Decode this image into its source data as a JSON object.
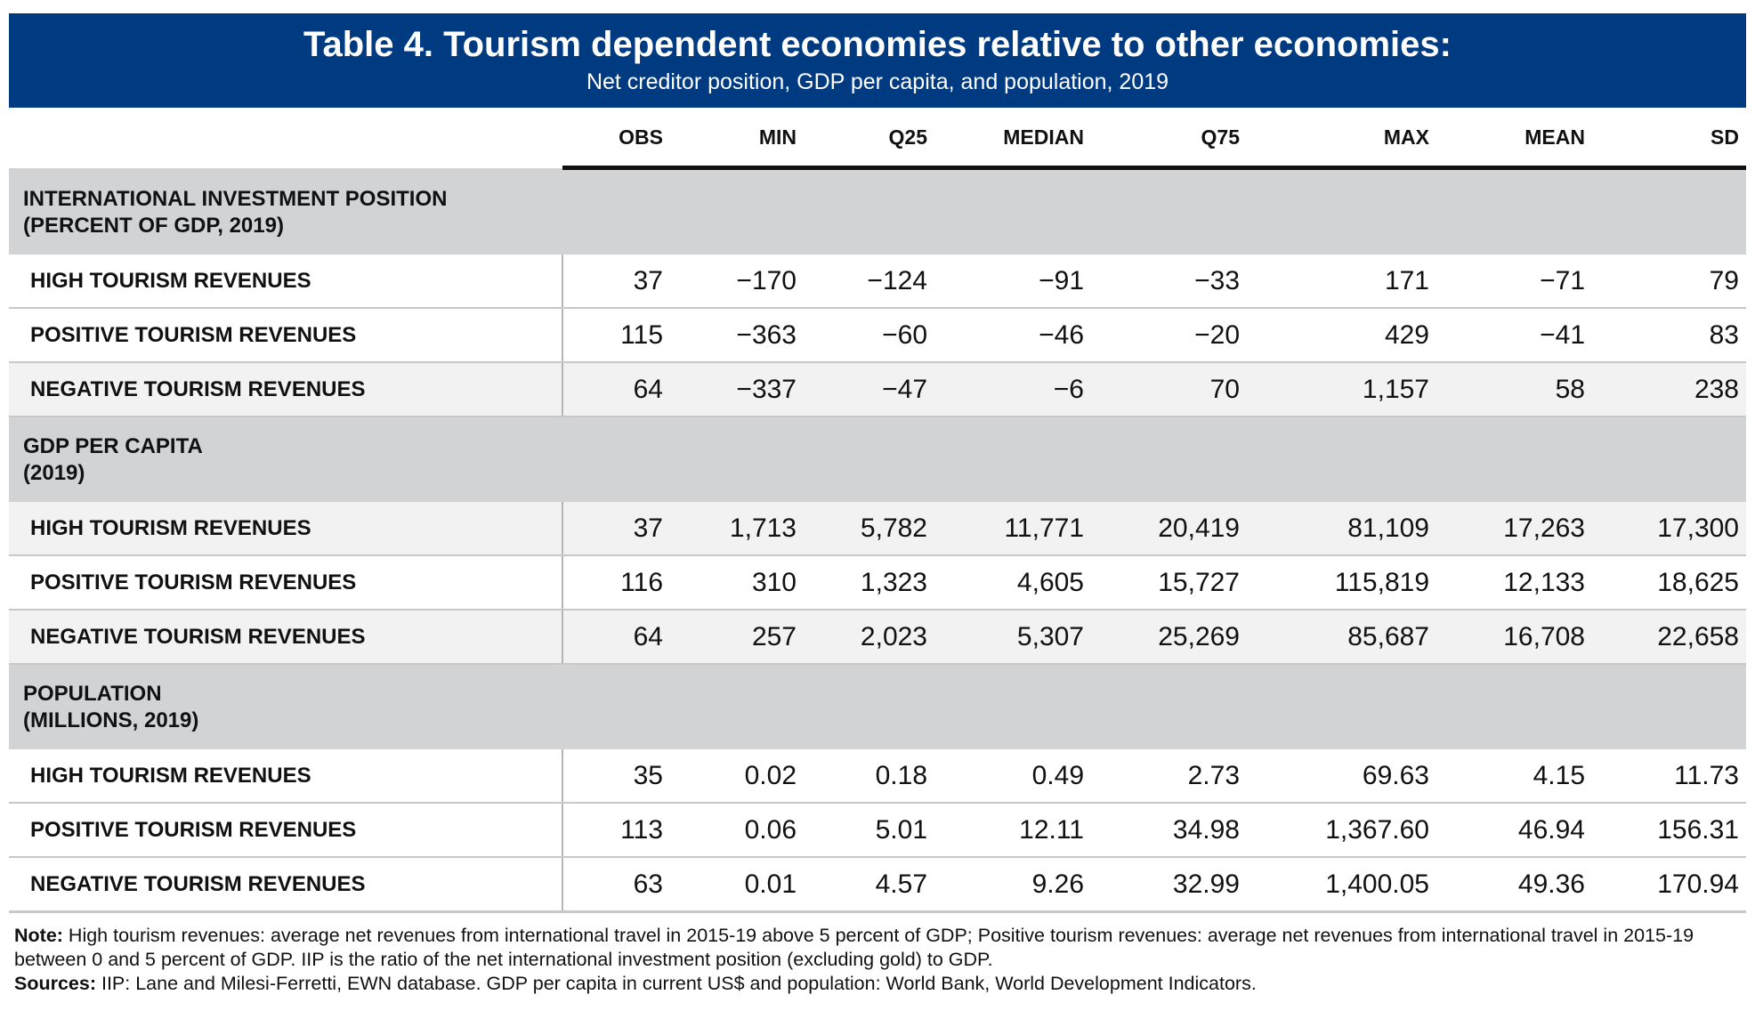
{
  "header": {
    "title": "Table 4. Tourism dependent economies relative to other economies:",
    "subtitle": "Net creditor position, GDP per capita, and population, 2019"
  },
  "columns": [
    "OBS",
    "MIN",
    "Q25",
    "MEDIAN",
    "Q75",
    "MAX",
    "MEAN",
    "SD"
  ],
  "sections": [
    {
      "title_line1": "INTERNATIONAL INVESTMENT POSITION",
      "title_line2": "(PERCENT OF GDP, 2019)",
      "rows": [
        {
          "label": "HIGH TOURISM REVENUES",
          "values": [
            "37",
            "−170",
            "−124",
            "−91",
            "−33",
            "171",
            "−71",
            "79"
          ]
        },
        {
          "label": "POSITIVE TOURISM REVENUES",
          "values": [
            "115",
            "−363",
            "−60",
            "−46",
            "−20",
            "429",
            "−41",
            "83"
          ]
        },
        {
          "label": "NEGATIVE TOURISM REVENUES",
          "values": [
            "64",
            "−337",
            "−47",
            "−6",
            "70",
            "1,157",
            "58",
            "238"
          ]
        }
      ]
    },
    {
      "title_line1": "GDP PER CAPITA",
      "title_line2": "(2019)",
      "rows": [
        {
          "label": "HIGH TOURISM REVENUES",
          "values": [
            "37",
            "1,713",
            "5,782",
            "11,771",
            "20,419",
            "81,109",
            "17,263",
            "17,300"
          ]
        },
        {
          "label": "POSITIVE TOURISM REVENUES",
          "values": [
            "116",
            "310",
            "1,323",
            "4,605",
            "15,727",
            "115,819",
            "12,133",
            "18,625"
          ]
        },
        {
          "label": "NEGATIVE TOURISM REVENUES",
          "values": [
            "64",
            "257",
            "2,023",
            "5,307",
            "25,269",
            "85,687",
            "16,708",
            "22,658"
          ]
        }
      ]
    },
    {
      "title_line1": "POPULATION",
      "title_line2": "(MILLIONS, 2019)",
      "rows": [
        {
          "label": "HIGH TOURISM REVENUES",
          "values": [
            "35",
            "0.02",
            "0.18",
            "0.49",
            "2.73",
            "69.63",
            "4.15",
            "11.73"
          ]
        },
        {
          "label": "POSITIVE TOURISM REVENUES",
          "values": [
            "113",
            "0.06",
            "5.01",
            "12.11",
            "34.98",
            "1,367.60",
            "46.94",
            "156.31"
          ]
        },
        {
          "label": "NEGATIVE TOURISM REVENUES",
          "values": [
            "63",
            "0.01",
            "4.57",
            "9.26",
            "32.99",
            "1,400.05",
            "49.36",
            "170.94"
          ]
        }
      ]
    }
  ],
  "notes": {
    "note_label": "Note:",
    "note_text": " High tourism revenues: average net revenues from international travel in 2015-19 above 5 percent of GDP; Positive tourism revenues: average net revenues from international travel in 2015-19 between 0 and 5 percent of GDP. IIP is the ratio of the net international investment position (excluding gold) to GDP.",
    "sources_label": "Sources:",
    "sources_text": " IIP: Lane and Milesi-Ferretti, EWN database. GDP per capita in current US$ and population: World Bank, World Development Indicators."
  },
  "colors": {
    "banner": "#003a80",
    "section_band": "#d1d3d4",
    "shaded_row": "#f2f2f2"
  }
}
